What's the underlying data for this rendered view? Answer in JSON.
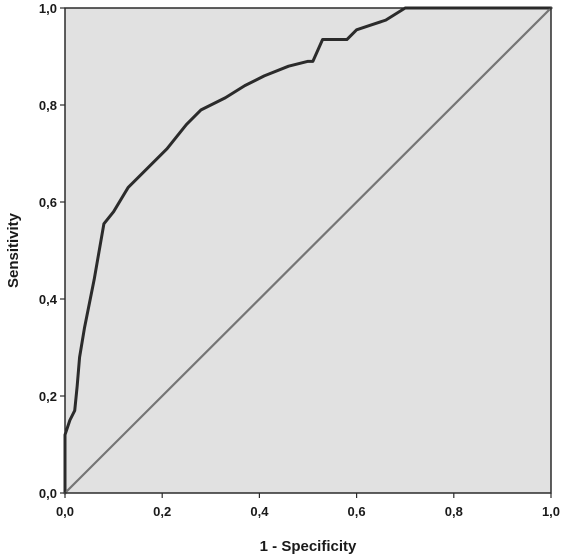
{
  "chart_data": {
    "type": "line",
    "title": "",
    "xlabel": "1 - Specificity",
    "ylabel": "Sensitivity",
    "xlim": [
      0,
      1
    ],
    "ylim": [
      0,
      1
    ],
    "x_ticks": [
      "0,0",
      "0,2",
      "0,4",
      "0,6",
      "0,8",
      "1,0"
    ],
    "y_ticks": [
      "0,0",
      "0,2",
      "0,4",
      "0,6",
      "0,8",
      "1,0"
    ],
    "grid": false,
    "background_color": "#e1e1e1",
    "series": [
      {
        "color": "#2b2b2b",
        "points": [
          [
            0.0,
            0.0
          ],
          [
            0.0,
            0.12
          ],
          [
            0.01,
            0.15
          ],
          [
            0.02,
            0.17
          ],
          [
            0.025,
            0.22
          ],
          [
            0.03,
            0.28
          ],
          [
            0.04,
            0.34
          ],
          [
            0.06,
            0.44
          ],
          [
            0.08,
            0.555
          ],
          [
            0.1,
            0.58
          ],
          [
            0.13,
            0.63
          ],
          [
            0.17,
            0.67
          ],
          [
            0.21,
            0.71
          ],
          [
            0.25,
            0.76
          ],
          [
            0.28,
            0.79
          ],
          [
            0.33,
            0.815
          ],
          [
            0.37,
            0.84
          ],
          [
            0.41,
            0.86
          ],
          [
            0.46,
            0.88
          ],
          [
            0.5,
            0.89
          ],
          [
            0.51,
            0.89
          ],
          [
            0.53,
            0.935
          ],
          [
            0.58,
            0.935
          ],
          [
            0.6,
            0.955
          ],
          [
            0.63,
            0.965
          ],
          [
            0.66,
            0.975
          ],
          [
            0.7,
            1.0
          ],
          [
            1.0,
            1.0
          ]
        ]
      },
      {
        "color": "#757575",
        "points": [
          [
            0,
            0
          ],
          [
            1,
            1
          ]
        ]
      }
    ]
  }
}
